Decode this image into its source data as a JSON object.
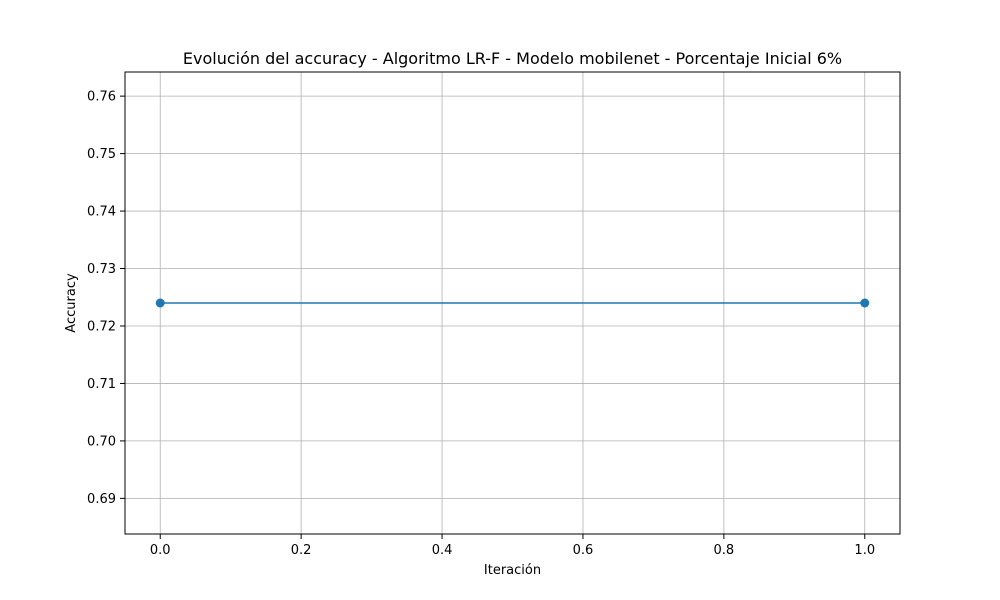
{
  "chart_data": {
    "type": "line",
    "title": "Evolución del accuracy - Algoritmo LR-F - Modelo mobilenet - Porcentaje Inicial 6%",
    "xlabel": "Iteración",
    "ylabel": "Accuracy",
    "xlim": [
      -0.05,
      1.05
    ],
    "ylim": [
      0.6838,
      0.7642
    ],
    "x_ticks": [
      0.0,
      0.2,
      0.4,
      0.6,
      0.8,
      1.0
    ],
    "x_tick_labels": [
      "0.0",
      "0.2",
      "0.4",
      "0.6",
      "0.8",
      "1.0"
    ],
    "y_ticks": [
      0.69,
      0.7,
      0.71,
      0.72,
      0.73,
      0.74,
      0.75,
      0.76
    ],
    "y_tick_labels": [
      "0.69",
      "0.70",
      "0.71",
      "0.72",
      "0.73",
      "0.74",
      "0.75",
      "0.76"
    ],
    "grid": true,
    "series": [
      {
        "color": "#1f77b4",
        "marker": "circle",
        "x": [
          0,
          1
        ],
        "y": [
          0.724,
          0.724
        ]
      }
    ]
  }
}
